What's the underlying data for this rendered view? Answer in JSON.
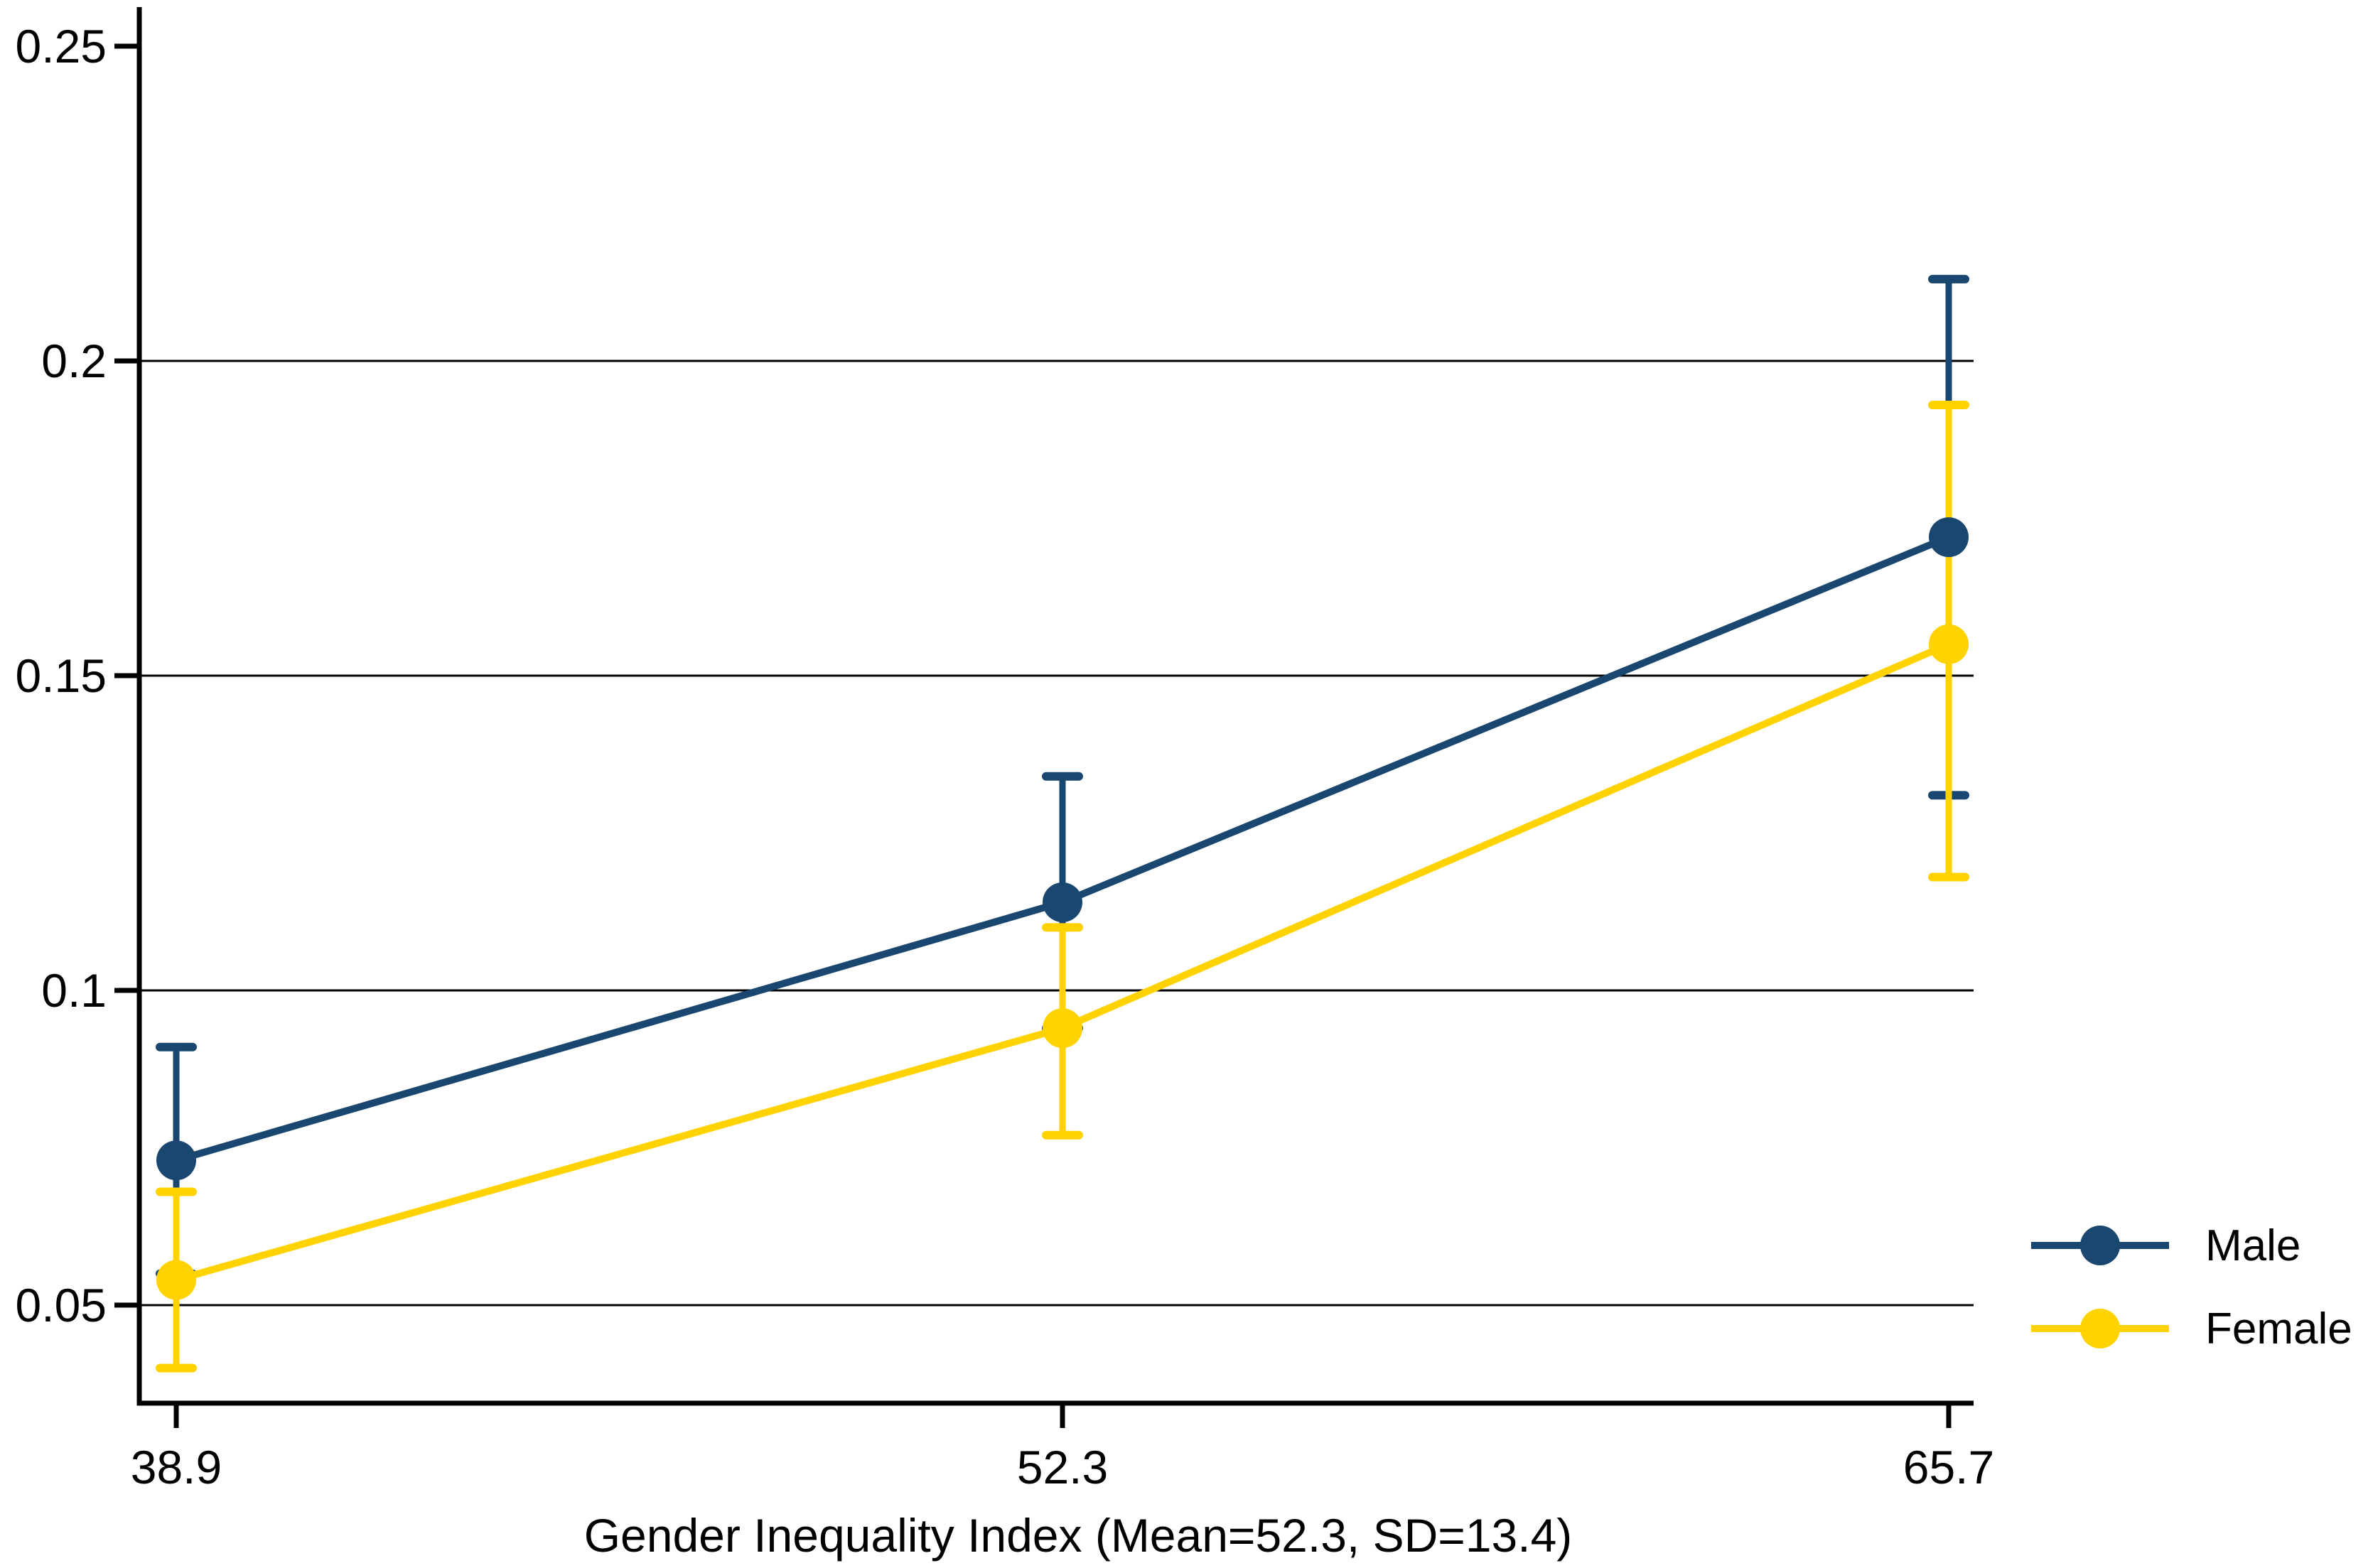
{
  "chart_data": {
    "type": "line",
    "title": "",
    "xlabel": "Gender Inequality Index (Mean=52.3, SD=13.4)",
    "ylabel": "",
    "categories": [
      38.9,
      52.3,
      65.7
    ],
    "x_tick_labels": [
      "38.9",
      "52.3",
      "65.7"
    ],
    "y_ticks": [
      0.05,
      0.1,
      0.15,
      0.2,
      0.25
    ],
    "y_tick_labels": [
      "0.05",
      "0.1",
      "0.15",
      "0.2",
      "0.25"
    ],
    "ylim": [
      0.04,
      0.256
    ],
    "grid": "horizontal gridlines at 0.05, 0.1, 0.15, 0.2 (none at 0.25)",
    "legend_position": "outside right, lower area",
    "error_bars": true,
    "series": [
      {
        "name": "Male",
        "color": "#1A476F",
        "values": [
          0.073,
          0.114,
          0.172
        ],
        "ci_low": [
          0.055,
          0.094,
          0.131
        ],
        "ci_high": [
          0.091,
          0.134,
          0.213
        ]
      },
      {
        "name": "Female",
        "color": "#FFD200",
        "values": [
          0.054,
          0.094,
          0.155
        ],
        "ci_low": [
          0.04,
          0.077,
          0.118
        ],
        "ci_high": [
          0.068,
          0.11,
          0.193
        ]
      }
    ]
  },
  "legend": {
    "items": [
      {
        "label": "Male",
        "color": "#1A476F",
        "marker": "filled-circle-with-line"
      },
      {
        "label": "Female",
        "color": "#FFD200",
        "marker": "filled-circle-with-line"
      }
    ]
  },
  "colors": {
    "male": "#1A476F",
    "female": "#FFD200",
    "axis": "#000000",
    "gridline": "#000000",
    "background": "#ffffff",
    "text": "#000000"
  }
}
